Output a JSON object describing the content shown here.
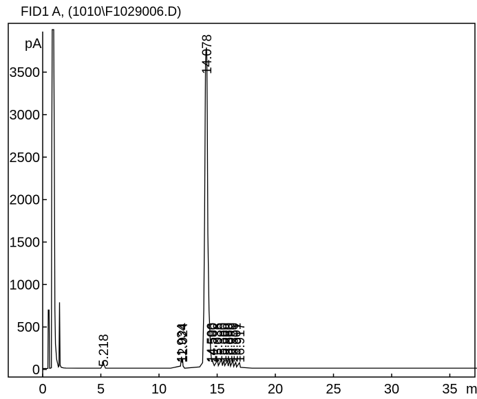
{
  "chart_data": {
    "type": "line",
    "title": "FID1 A,  (1010\\F1029006.D)",
    "y_unit": "pA",
    "x_unit": "m",
    "xlim": [
      0,
      37.5
    ],
    "ylim": [
      -50,
      3970
    ],
    "x_ticks": [
      0,
      5,
      10,
      15,
      20,
      25,
      30,
      35
    ],
    "y_ticks": [
      0,
      500,
      1000,
      1500,
      2000,
      2500,
      3000,
      3500
    ],
    "grid": false,
    "peak_labels": [
      "5.218",
      "11.934",
      "12.024",
      "14.078",
      "14.506",
      "14.580",
      "15.036",
      "15.380",
      "15.580",
      "15.880",
      "16.090",
      "16.350",
      "16.601",
      "16.917"
    ],
    "series": [
      {
        "x": [
          0,
          0.45,
          0.48,
          0.55,
          0.6,
          0.62,
          0.75,
          0.78,
          0.82,
          0.85,
          0.88,
          0.92,
          0.95,
          1.0,
          1.05,
          1.1,
          1.2,
          1.35,
          1.4,
          1.45,
          1.5,
          1.6,
          1.8,
          2.0,
          3.0,
          5.0,
          5.18,
          5.218,
          5.26,
          5.4,
          8.0,
          11.0,
          11.85,
          11.934,
          11.98,
          12.024,
          12.07,
          12.2,
          13.5,
          13.75,
          13.85,
          13.92,
          13.97,
          14.0,
          14.04,
          14.078,
          14.11,
          14.15,
          14.2,
          14.3,
          14.45,
          14.506,
          14.54,
          14.58,
          14.62,
          14.75,
          15.036,
          15.1,
          15.38,
          15.45,
          15.58,
          15.65,
          15.88,
          15.95,
          16.09,
          16.15,
          16.35,
          16.42,
          16.601,
          16.67,
          16.917,
          17.0,
          18.0,
          37.5
        ],
        "y": [
          12,
          12,
          700,
          700,
          14,
          13,
          20,
          2500,
          4000,
          4000,
          4000,
          4000,
          4000,
          2600,
          700,
          300,
          120,
          30,
          40,
          790,
          50,
          25,
          18,
          16,
          15,
          15,
          60,
          90,
          60,
          15,
          15,
          15,
          40,
          150,
          80,
          130,
          40,
          15,
          30,
          80,
          700,
          1800,
          3000,
          3600,
          3760,
          3790,
          3700,
          3000,
          1600,
          700,
          200,
          130,
          90,
          130,
          90,
          45,
          110,
          45,
          120,
          45,
          110,
          45,
          100,
          40,
          110,
          40,
          105,
          35,
          85,
          30,
          80,
          25,
          15,
          15
        ]
      }
    ]
  }
}
